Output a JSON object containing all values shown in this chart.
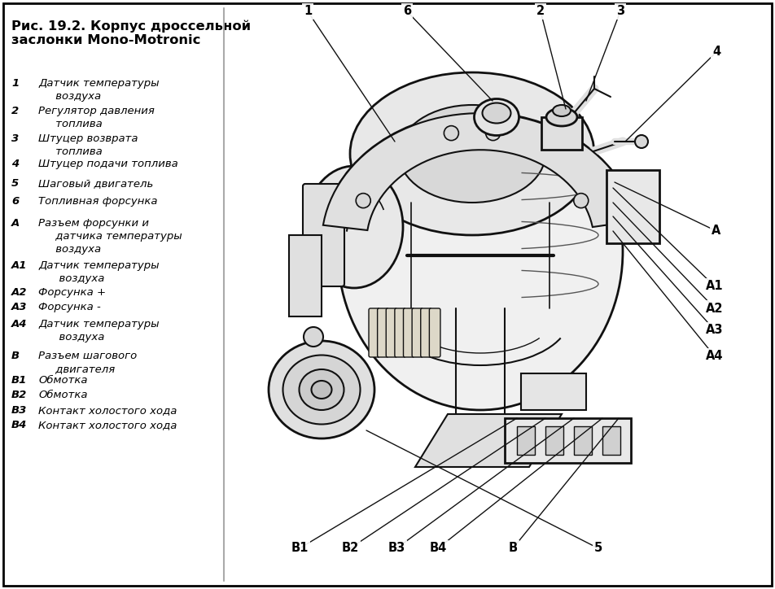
{
  "title_line1": "Рис. 19.2. Корпус дроссельной",
  "title_line2": "заслонки Mono-Motronic",
  "bg": "#ffffff",
  "border_color": "#000000",
  "text_color": "#000000",
  "lc": "#111111",
  "layout": [
    [
      "1",
      "Датчик температуры\n     воздуха",
      0.868
    ],
    [
      "2",
      "Регулятор давления\n     топлива",
      0.82
    ],
    [
      "3",
      "Штуцер возврата\n     топлива",
      0.773
    ],
    [
      "4",
      "Штуцер подачи топлива",
      0.73
    ],
    [
      "5",
      "Шаговый двигатель",
      0.698
    ],
    [
      "6",
      "Топливная форсунка",
      0.667
    ],
    [
      "A",
      "Разъем форсунки и\n     датчика температуры\n     воздуха",
      0.63
    ],
    [
      "A1",
      "Датчик температуры\n      воздуха",
      0.558
    ],
    [
      "A2",
      "Форсунка +",
      0.512
    ],
    [
      "A3",
      "Форсунка -",
      0.487
    ],
    [
      "A4",
      "Датчик температуры\n      воздуха",
      0.458
    ],
    [
      "B",
      "Разъем шагового\n     двигателя",
      0.405
    ],
    [
      "B1",
      "Обмотка",
      0.363
    ],
    [
      "B2",
      "Обмотка",
      0.338
    ],
    [
      "B3",
      "Контакт холостого хода",
      0.312
    ],
    [
      "B4",
      "Контакт холостого хода",
      0.287
    ]
  ],
  "figsize": [
    9.52,
    7.24
  ],
  "dpi": 100
}
